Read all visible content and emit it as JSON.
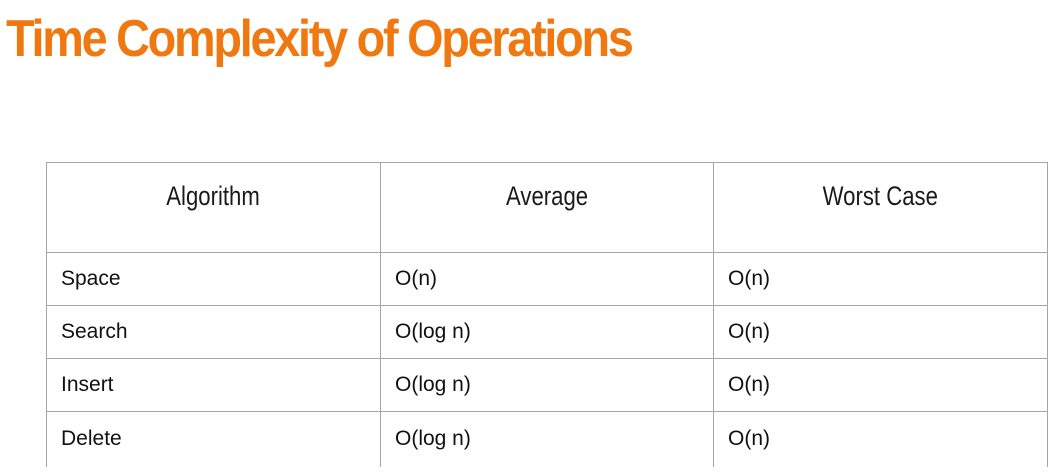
{
  "title": "Time Complexity of Operations",
  "colors": {
    "title": "#f07810",
    "border": "#a6a6a6"
  },
  "table": {
    "headers": [
      "Algorithm",
      "Average",
      "Worst Case"
    ],
    "rows": [
      [
        "Space",
        "O(n)",
        "O(n)"
      ],
      [
        "Search",
        "O(log n)",
        "O(n)"
      ],
      [
        "Insert",
        "O(log n)",
        "O(n)"
      ],
      [
        "Delete",
        "O(log n)",
        "O(n)"
      ]
    ]
  }
}
